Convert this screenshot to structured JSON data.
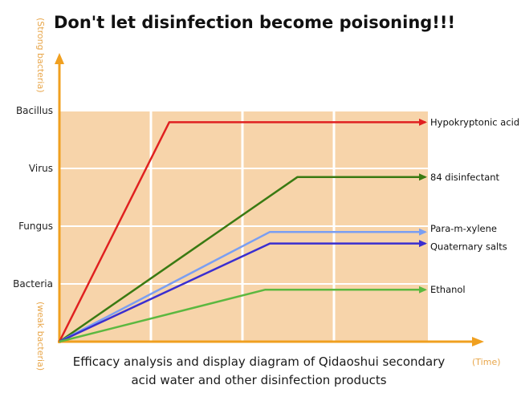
{
  "title": "Don't let disinfection become poisoning!!!",
  "caption": {
    "line1": "Efficacy analysis and display diagram of Qidaoshui secondary",
    "line2": "acid water and other disinfection products"
  },
  "colors": {
    "plot_background": "#f7d4aa",
    "grid": "#ffffff",
    "axis": "#f0a020",
    "axis_note": "#e8a64a"
  },
  "chart_data": {
    "type": "line",
    "y_axis_top_note": "(Strong bacteria)",
    "y_axis_bottom_note": "(weak bacteria)",
    "x_axis_note": "(Time)",
    "y_categories": [
      "Bacteria",
      "Fungus",
      "Virus",
      "Bacillus"
    ],
    "ylim": [
      0,
      4
    ],
    "xlim": [
      0,
      4
    ],
    "grid": true,
    "series": [
      {
        "name": "Hypokryptonic acid",
        "color": "#e02020",
        "points": [
          [
            0,
            0
          ],
          [
            1.2,
            3.8
          ],
          [
            4,
            3.8
          ]
        ]
      },
      {
        "name": "84 disinfectant",
        "color": "#3a7a12",
        "points": [
          [
            0,
            0
          ],
          [
            2.6,
            2.85
          ],
          [
            4,
            2.85
          ]
        ]
      },
      {
        "name": "Para-m-xylene",
        "color": "#7a9ef2",
        "points": [
          [
            0,
            0
          ],
          [
            2.3,
            1.9
          ],
          [
            4,
            1.9
          ]
        ]
      },
      {
        "name": "Quaternary salts",
        "color": "#3a2ed0",
        "points": [
          [
            0,
            0
          ],
          [
            2.3,
            1.7
          ],
          [
            4,
            1.7
          ]
        ]
      },
      {
        "name": "Ethanol",
        "color": "#5cb840",
        "points": [
          [
            0,
            0
          ],
          [
            2.25,
            0.9
          ],
          [
            4,
            0.9
          ]
        ]
      }
    ]
  }
}
